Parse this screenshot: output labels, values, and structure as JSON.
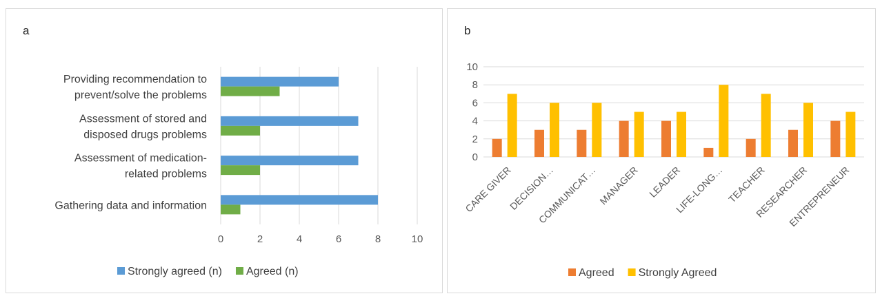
{
  "chart_data": [
    {
      "panel_label": "a",
      "type": "bar",
      "orientation": "horizontal",
      "categories": [
        "Gathering data and information",
        "Assessment of medication-related problems",
        "Assessment of stored and disposed drugs problems",
        "Providing recommendation to prevent/solve the problems"
      ],
      "category_lines": [
        [
          "Gathering data and information"
        ],
        [
          "Assessment of medication-",
          "related problems"
        ],
        [
          "Assessment of stored and",
          "disposed drugs problems"
        ],
        [
          "Providing recommendation to",
          "prevent/solve the problems"
        ]
      ],
      "series": [
        {
          "name": "Strongly agreed (n)",
          "color": "#5b9bd5",
          "values": [
            8,
            7,
            7,
            6
          ]
        },
        {
          "name": "Agreed (n)",
          "color": "#70ad47",
          "values": [
            1,
            2,
            2,
            3
          ]
        }
      ],
      "xlim": [
        0,
        10
      ],
      "ticks": [
        0,
        2,
        4,
        6,
        8,
        10
      ],
      "grid": true,
      "legend": "bottom"
    },
    {
      "panel_label": "b",
      "type": "bar",
      "orientation": "vertical",
      "categories": [
        "CARE GIVER",
        "DECISION…",
        "COMMUNICAT…",
        "MANAGER",
        "LEADER",
        "LIFE-LONG…",
        "TEACHER",
        "RESEARCHER",
        "ENTREPRENEUR"
      ],
      "series": [
        {
          "name": "Agreed",
          "color": "#ed7d31",
          "values": [
            2,
            3,
            3,
            4,
            4,
            1,
            2,
            3,
            4
          ]
        },
        {
          "name": "Strongly Agreed",
          "color": "#ffc000",
          "values": [
            7,
            6,
            6,
            5,
            5,
            8,
            7,
            6,
            5
          ]
        }
      ],
      "ylim": [
        0,
        10
      ],
      "ticks": [
        0,
        2,
        4,
        6,
        8,
        10
      ],
      "grid": true,
      "legend": "bottom"
    }
  ]
}
